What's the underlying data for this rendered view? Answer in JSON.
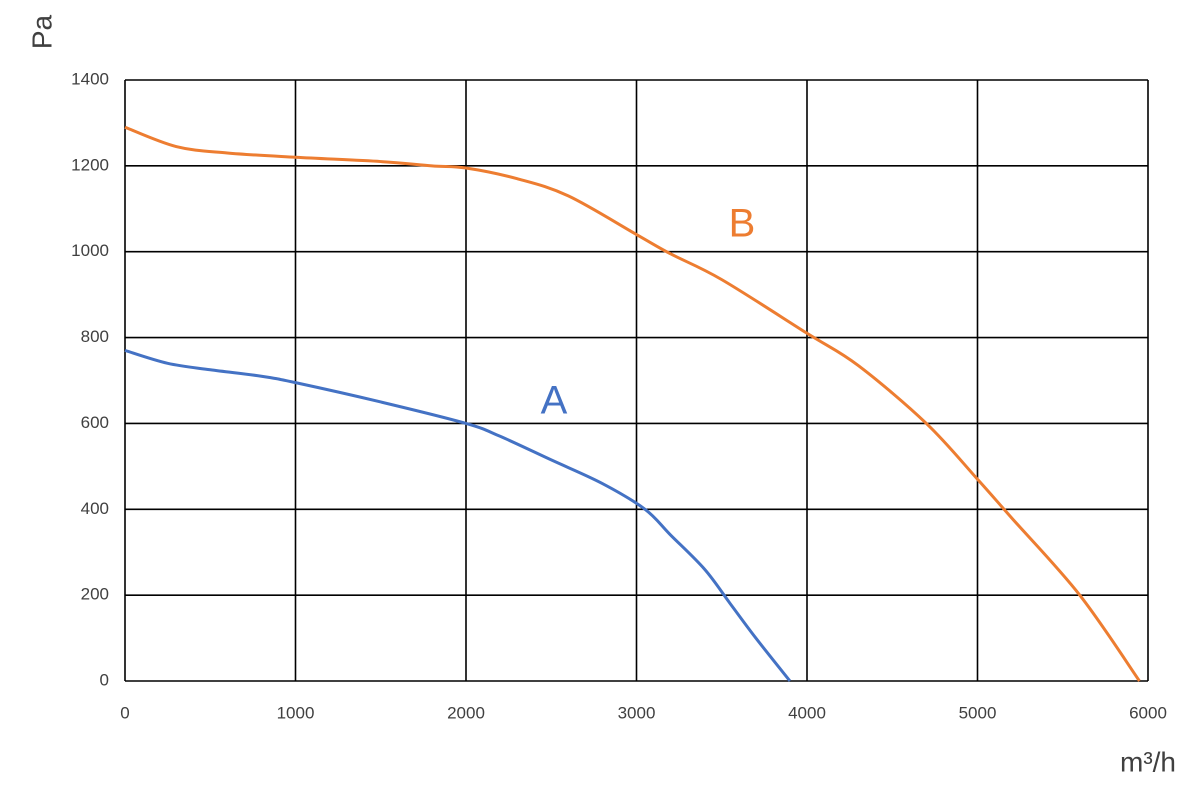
{
  "chart_data": {
    "type": "line",
    "x_label": "m³/h",
    "y_label": "Pa",
    "xlim": [
      0,
      6000
    ],
    "xticks": [
      0,
      1000,
      2000,
      3000,
      4000,
      5000,
      6000
    ],
    "ylim": [
      0,
      1400
    ],
    "yticks": [
      0,
      200,
      400,
      600,
      800,
      1000,
      1200,
      1400
    ],
    "grid": true,
    "series": [
      {
        "name": "A",
        "color": "#4472c4",
        "x": [
          0,
          250,
          500,
          800,
          1000,
          1500,
          2000,
          2200,
          2500,
          2800,
          3050,
          3200,
          3400,
          3550,
          3700,
          3900
        ],
        "values": [
          770,
          740,
          725,
          710,
          695,
          650,
          600,
          570,
          515,
          460,
          400,
          340,
          260,
          180,
          100,
          0
        ]
      },
      {
        "name": "B",
        "color": "#ed7d31",
        "x": [
          0,
          300,
          600,
          1000,
          1500,
          1800,
          2000,
          2300,
          2600,
          3000,
          3200,
          3500,
          4000,
          4300,
          4700,
          5000,
          5200,
          5600,
          5950
        ],
        "values": [
          1290,
          1245,
          1230,
          1220,
          1210,
          1200,
          1195,
          1170,
          1130,
          1040,
          995,
          935,
          810,
          735,
          600,
          470,
          380,
          200,
          0
        ]
      }
    ]
  }
}
